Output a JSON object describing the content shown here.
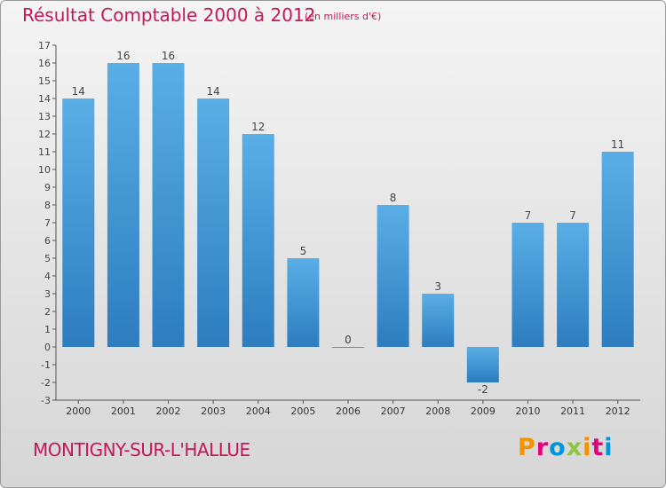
{
  "header": {
    "title": "Résultat Comptable 2000 à 2012",
    "unit": "(en milliers d'€)"
  },
  "footer": {
    "place": "MONTIGNY-SUR-L'HALLUE",
    "logo_text": "Proxiti",
    "logo_colors": [
      "#f39200",
      "#e6007e",
      "#0095d9",
      "#8cc63f",
      "#f39200",
      "#e6007e",
      "#0095d9"
    ]
  },
  "colors": {
    "bar_top": "#5aaee6",
    "bar_bottom": "#2d7dbf",
    "accent": "#c2185b"
  },
  "chart_data": {
    "type": "bar",
    "categories": [
      "2000",
      "2001",
      "2002",
      "2003",
      "2004",
      "2005",
      "2006",
      "2007",
      "2008",
      "2009",
      "2010",
      "2011",
      "2012"
    ],
    "values": [
      14,
      16,
      16,
      14,
      12,
      5,
      0,
      8,
      3,
      -2,
      7,
      7,
      11
    ],
    "value_labels": [
      "14",
      "16",
      "16",
      "14",
      "12",
      "5",
      "0",
      "8",
      "3",
      "-2",
      "7",
      "7",
      "11"
    ],
    "ylim": [
      -3,
      17
    ],
    "yticks": [
      "-3",
      "-2",
      "-1",
      "0",
      "1",
      "2",
      "3",
      "4",
      "5",
      "6",
      "7",
      "8",
      "9",
      "10",
      "11",
      "12",
      "13",
      "14",
      "15",
      "16",
      "17"
    ],
    "grid": false
  }
}
